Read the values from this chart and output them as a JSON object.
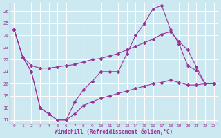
{
  "xlabel": "Windchill (Refroidissement éolien,°C)",
  "bg_color": "#cce8f0",
  "line_color": "#993399",
  "grid_color": "#ffffff",
  "xlim_min": -0.5,
  "xlim_max": 23.5,
  "ylim_min": 16.7,
  "ylim_max": 26.7,
  "yticks": [
    17,
    18,
    19,
    20,
    21,
    22,
    23,
    24,
    25,
    26
  ],
  "xticks": [
    0,
    1,
    2,
    3,
    4,
    5,
    6,
    7,
    8,
    9,
    10,
    11,
    12,
    13,
    14,
    15,
    16,
    17,
    18,
    19,
    20,
    21,
    22,
    23
  ],
  "line1": [
    24.5,
    22.2,
    21.0,
    18.0,
    17.5,
    17.0,
    17.0,
    18.5,
    19.5,
    20.2,
    21.0,
    21.0,
    21.0,
    22.5,
    24.0,
    25.0,
    26.2,
    26.5,
    24.5,
    23.3,
    21.5,
    21.1,
    20.0,
    20.0
  ],
  "line2": [
    24.5,
    22.2,
    21.5,
    21.3,
    21.3,
    21.4,
    21.5,
    21.6,
    21.8,
    22.0,
    22.1,
    22.3,
    22.5,
    22.8,
    23.1,
    23.4,
    23.7,
    24.1,
    24.3,
    23.5,
    22.8,
    21.4,
    20.0,
    20.0
  ],
  "line3": [
    24.5,
    22.2,
    21.0,
    18.0,
    17.5,
    17.0,
    17.0,
    17.5,
    18.2,
    18.5,
    18.8,
    19.0,
    19.2,
    19.4,
    19.6,
    19.8,
    20.0,
    20.1,
    20.3,
    20.1,
    19.9,
    19.9,
    20.0,
    20.0
  ]
}
